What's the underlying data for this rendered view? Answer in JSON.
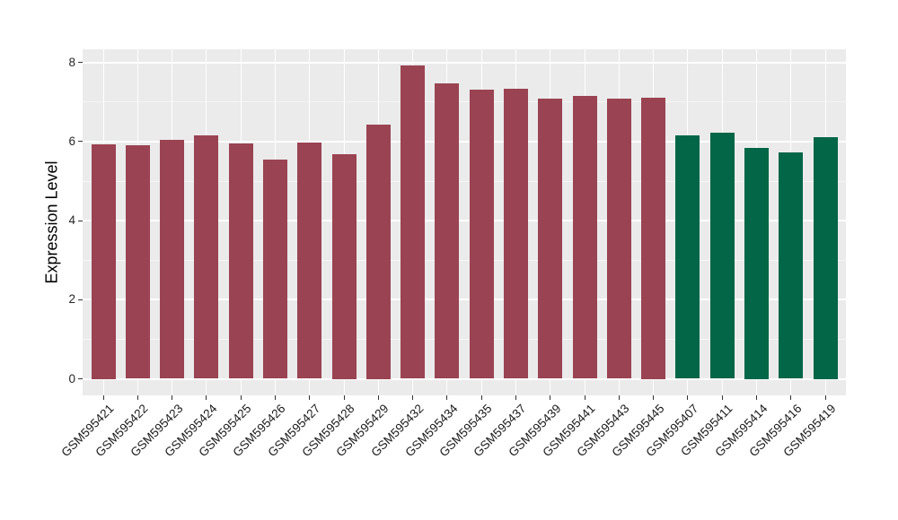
{
  "chart_data": {
    "type": "bar",
    "title": "",
    "xlabel": "",
    "ylabel": "Expression Level",
    "ylim": [
      0,
      8.4
    ],
    "yticks": [
      0,
      2,
      4,
      6,
      8
    ],
    "yticks_minor": [
      1,
      3,
      5,
      7
    ],
    "grid": "on",
    "legend": "none",
    "categories": [
      "GSM595421",
      "GSM595422",
      "GSM595423",
      "GSM595424",
      "GSM595425",
      "GSM595426",
      "GSM595427",
      "GSM595428",
      "GSM595429",
      "GSM595432",
      "GSM595434",
      "GSM595435",
      "GSM595437",
      "GSM595439",
      "GSM595441",
      "GSM595443",
      "GSM595445",
      "GSM595407",
      "GSM595411",
      "GSM595414",
      "GSM595416",
      "GSM595419"
    ],
    "values": [
      5.94,
      5.9,
      6.04,
      6.16,
      5.95,
      5.55,
      5.98,
      5.68,
      6.44,
      7.92,
      7.47,
      7.32,
      7.34,
      7.09,
      7.15,
      7.08,
      7.12,
      6.16,
      6.23,
      5.85,
      5.72,
      6.11
    ],
    "bar_groups": [
      "A",
      "A",
      "A",
      "A",
      "A",
      "A",
      "A",
      "A",
      "A",
      "A",
      "A",
      "A",
      "A",
      "A",
      "A",
      "A",
      "A",
      "B",
      "B",
      "B",
      "B",
      "B"
    ],
    "group_colors": {
      "A": "#9A4352",
      "B": "#026647"
    }
  },
  "style": {
    "panel_background": "#EBEBEB",
    "figure_background": "#FFFFFF",
    "grid_major_color": "#FFFFFF",
    "grid_minor_color": "rgba(255,255,255,0.55)",
    "tick_color": "#333333",
    "axis_text_color": "#262626",
    "axis_title_color": "#000000"
  }
}
